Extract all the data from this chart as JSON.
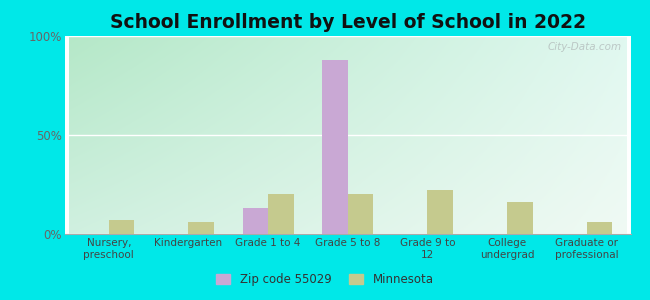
{
  "title": "School Enrollment by Level of School in 2022",
  "categories": [
    "Nursery,\npreschool",
    "Kindergarten",
    "Grade 1 to 4",
    "Grade 5 to 8",
    "Grade 9 to\n12",
    "College\nundergrad",
    "Graduate or\nprofessional"
  ],
  "zip_values": [
    0,
    0,
    13,
    88,
    0,
    0,
    0
  ],
  "mn_values": [
    7,
    6,
    20,
    20,
    22,
    16,
    6
  ],
  "zip_color": "#c9a8d4",
  "mn_color": "#c5ca8e",
  "background_outer": "#00e8e8",
  "ylim": [
    0,
    100
  ],
  "yticks": [
    0,
    50,
    100
  ],
  "ytick_labels": [
    "0%",
    "50%",
    "100%"
  ],
  "title_fontsize": 13.5,
  "legend_label_zip": "Zip code 55029",
  "legend_label_mn": "Minnesota",
  "bar_width": 0.32,
  "watermark": "City-Data.com",
  "grad_top_left": "#b5e8c8",
  "grad_bottom_right": "#e8f8f0"
}
